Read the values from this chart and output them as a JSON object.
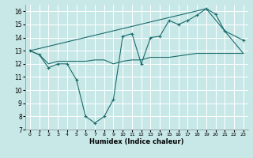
{
  "xlabel": "Humidex (Indice chaleur)",
  "background_color": "#c8e8e8",
  "grid_color": "#ffffff",
  "line_color": "#1a6b6b",
  "xlim": [
    -0.5,
    23.5
  ],
  "ylim": [
    7,
    16.5
  ],
  "yticks": [
    7,
    8,
    9,
    10,
    11,
    12,
    13,
    14,
    15,
    16
  ],
  "xticks": [
    0,
    1,
    2,
    3,
    4,
    5,
    6,
    7,
    8,
    9,
    10,
    11,
    12,
    13,
    14,
    15,
    16,
    17,
    18,
    19,
    20,
    21,
    22,
    23
  ],
  "line1_x": [
    0,
    1,
    2,
    3,
    4,
    5,
    6,
    7,
    8,
    9,
    10,
    11,
    12,
    13,
    14,
    15,
    16,
    17,
    18,
    19,
    20,
    21,
    23
  ],
  "line1_y": [
    13.0,
    12.7,
    11.7,
    12.0,
    12.0,
    10.8,
    8.0,
    7.5,
    8.0,
    9.3,
    14.1,
    14.3,
    12.0,
    14.0,
    14.1,
    15.3,
    15.0,
    15.3,
    15.7,
    16.2,
    15.8,
    14.5,
    13.8
  ],
  "line2_x": [
    0,
    1,
    2,
    3,
    4,
    5,
    6,
    7,
    8,
    9,
    10,
    11,
    12,
    13,
    14,
    15,
    16,
    17,
    18,
    19,
    20,
    21,
    22,
    23
  ],
  "line2_y": [
    13.0,
    12.7,
    12.0,
    12.2,
    12.2,
    12.2,
    12.2,
    12.3,
    12.3,
    12.0,
    12.2,
    12.3,
    12.3,
    12.5,
    12.5,
    12.5,
    12.6,
    12.7,
    12.8,
    12.8,
    12.8,
    12.8,
    12.8,
    12.8
  ],
  "line3_x": [
    0,
    19,
    23
  ],
  "line3_y": [
    13.0,
    16.2,
    12.8
  ]
}
